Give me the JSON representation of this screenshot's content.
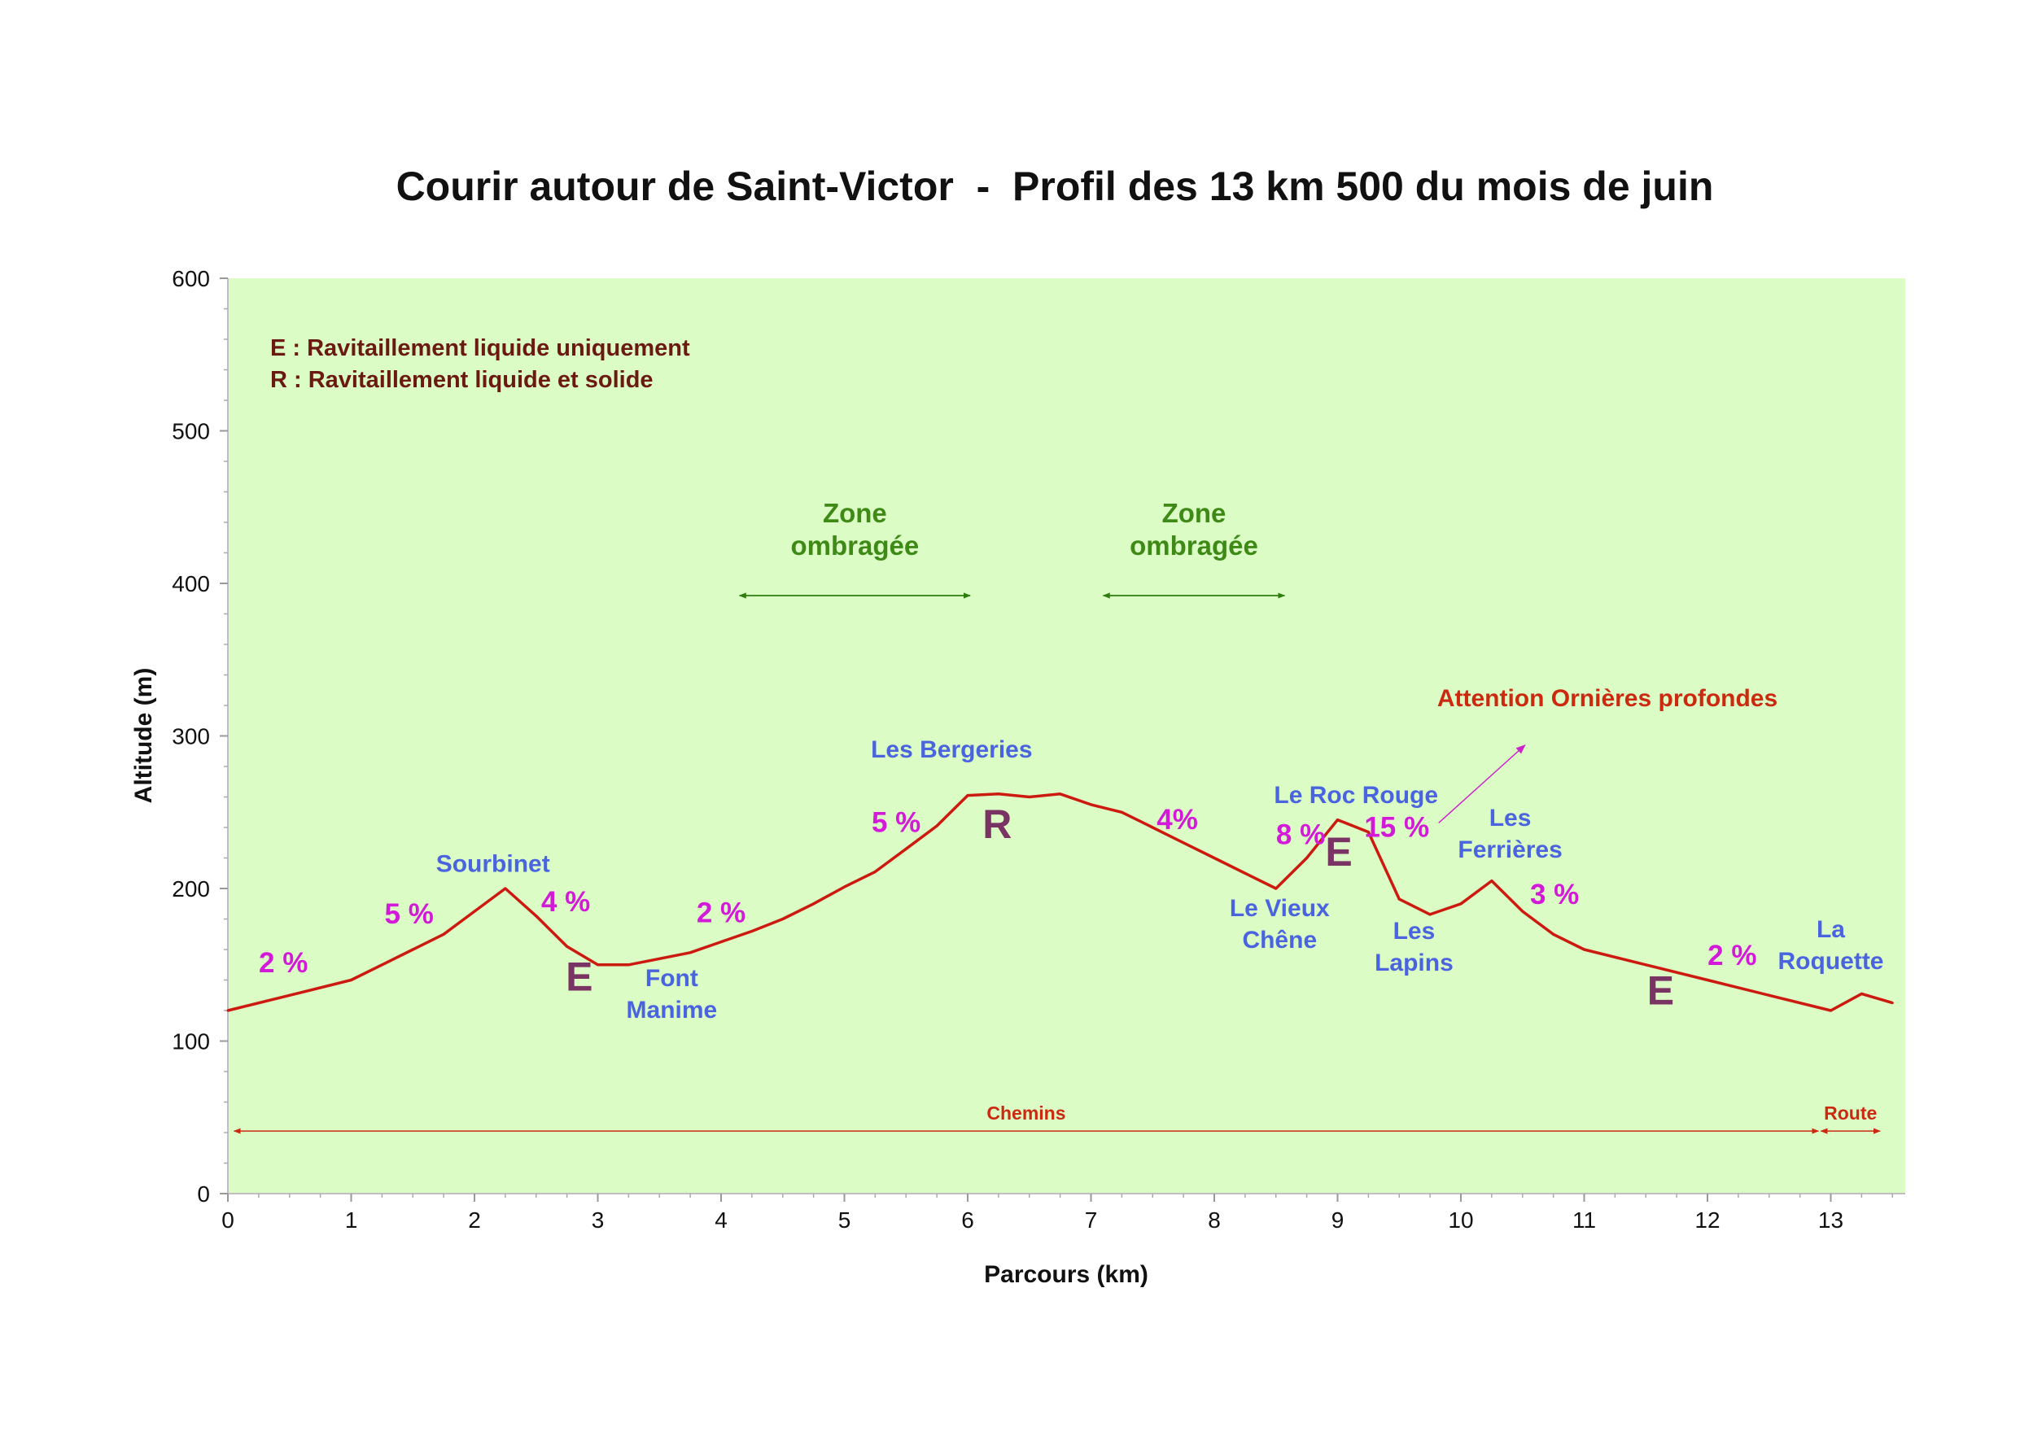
{
  "chart_data": {
    "type": "line",
    "title": "Courir autour de Saint-Victor  -  Profil des 13 km 500 du mois de juin",
    "xlabel": "Parcours (km)",
    "ylabel": "Altitude (m)",
    "xlim": [
      0,
      13.6
    ],
    "ylim": [
      0,
      600
    ],
    "x_ticks": [
      "0",
      "1",
      "2",
      "3",
      "4",
      "5",
      "6",
      "7",
      "8",
      "9",
      "10",
      "11",
      "12",
      "13"
    ],
    "y_ticks": [
      "0",
      "100",
      "200",
      "300",
      "400",
      "500",
      "600"
    ],
    "grid": false,
    "plot_bg": "#dcfcc6",
    "line_color": "#cc1a10",
    "series": [
      {
        "x": [
          0,
          0.5,
          1,
          1.25,
          1.5,
          1.75,
          2,
          2.25,
          2.5,
          2.75,
          3,
          3.25,
          3.5,
          3.75,
          4,
          4.25,
          4.5,
          4.75,
          5,
          5.25,
          5.5,
          5.75,
          6,
          6.25,
          6.5,
          6.75,
          7,
          7.25,
          7.5,
          7.75,
          8,
          8.25,
          8.5,
          8.75,
          9,
          9.25,
          9.5,
          9.75,
          10,
          10.25,
          10.5,
          10.75,
          11,
          11.5,
          12,
          12.5,
          13,
          13.25,
          13.5
        ],
        "y": [
          120,
          130,
          140,
          150,
          160,
          170,
          185,
          200,
          182,
          162,
          150,
          150,
          154,
          158,
          165,
          172,
          180,
          190,
          201,
          211,
          226,
          241,
          261,
          262,
          260,
          262,
          255,
          250,
          240,
          230,
          220,
          210,
          200,
          220,
          245,
          237,
          193,
          183,
          190,
          205,
          185,
          170,
          160,
          150,
          140,
          130,
          120,
          131,
          125
        ]
      }
    ],
    "legend_lines": [
      "E : Ravitaillement liquide uniquement",
      "R : Ravitaillement liquide et solide"
    ],
    "places": [
      {
        "lines": [
          "Sourbinet"
        ],
        "x": 2.15,
        "y": 211
      },
      {
        "lines": [
          "Font",
          "Manime"
        ],
        "x": 3.6,
        "y": 136
      },
      {
        "lines": [
          "Les Bergeries"
        ],
        "x": 5.87,
        "y": 286
      },
      {
        "lines": [
          "Le Roc Rouge"
        ],
        "x": 9.15,
        "y": 256
      },
      {
        "lines": [
          "Le Vieux",
          "Chêne"
        ],
        "x": 8.53,
        "y": 182
      },
      {
        "lines": [
          "Les",
          "Lapins"
        ],
        "x": 9.62,
        "y": 167
      },
      {
        "lines": [
          "Les",
          "Ferrières"
        ],
        "x": 10.4,
        "y": 241
      },
      {
        "lines": [
          "La",
          "Roquette"
        ],
        "x": 13,
        "y": 168
      }
    ],
    "gradients": [
      {
        "label": "2 %",
        "x": 0.45,
        "y": 145
      },
      {
        "label": "5 %",
        "x": 1.47,
        "y": 177
      },
      {
        "label": "4 %",
        "x": 2.74,
        "y": 185
      },
      {
        "label": "2 %",
        "x": 4.0,
        "y": 178
      },
      {
        "label": "5 %",
        "x": 5.42,
        "y": 237
      },
      {
        "label": "4%",
        "x": 7.7,
        "y": 239
      },
      {
        "label": "8 %",
        "x": 8.7,
        "y": 229
      },
      {
        "label": "15 %",
        "x": 9.48,
        "y": 234
      },
      {
        "label": "3 %",
        "x": 10.76,
        "y": 190
      },
      {
        "label": "2 %",
        "x": 12.2,
        "y": 150
      }
    ],
    "stations": [
      {
        "label": "E",
        "x": 2.85,
        "y": 133
      },
      {
        "label": "R",
        "x": 6.24,
        "y": 233
      },
      {
        "label": "E",
        "x": 9.01,
        "y": 215
      },
      {
        "label": "E",
        "x": 11.62,
        "y": 124
      }
    ],
    "shaded_zones": [
      {
        "lines": [
          "Zone",
          "ombragée"
        ],
        "x_start": 4.15,
        "x_end": 6.02,
        "y": 392
      },
      {
        "lines": [
          "Zone",
          "ombragée"
        ],
        "x_start": 7.1,
        "x_end": 8.57,
        "y": 392
      }
    ],
    "surfaces": [
      {
        "label": "Chemins",
        "x_start": 0.05,
        "x_end": 12.9,
        "y": 41
      },
      {
        "label": "Route",
        "x_start": 12.92,
        "x_end": 13.4,
        "y": 41
      }
    ],
    "warning": {
      "label": "Attention Ornières profondes",
      "x_from": 9.82,
      "y_from": 243,
      "x_to": 10.52,
      "y_to": 294
    }
  }
}
